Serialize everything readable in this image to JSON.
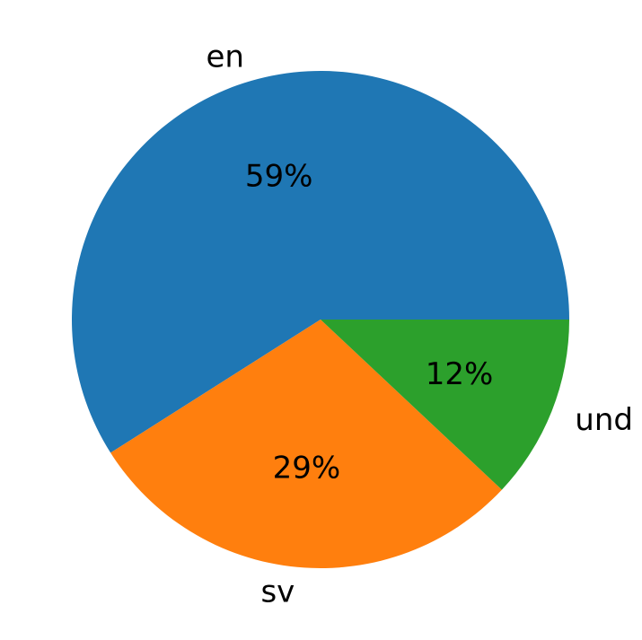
{
  "chart_data": {
    "type": "pie",
    "categories": [
      "en",
      "sv",
      "und"
    ],
    "values": [
      59,
      29,
      12
    ],
    "value_labels": [
      "59%",
      "29%",
      "12%"
    ],
    "colors": [
      "#1f77b4",
      "#ff7f0e",
      "#2ca02c"
    ],
    "start_angle_deg": 0,
    "direction": "counterclockwise"
  }
}
